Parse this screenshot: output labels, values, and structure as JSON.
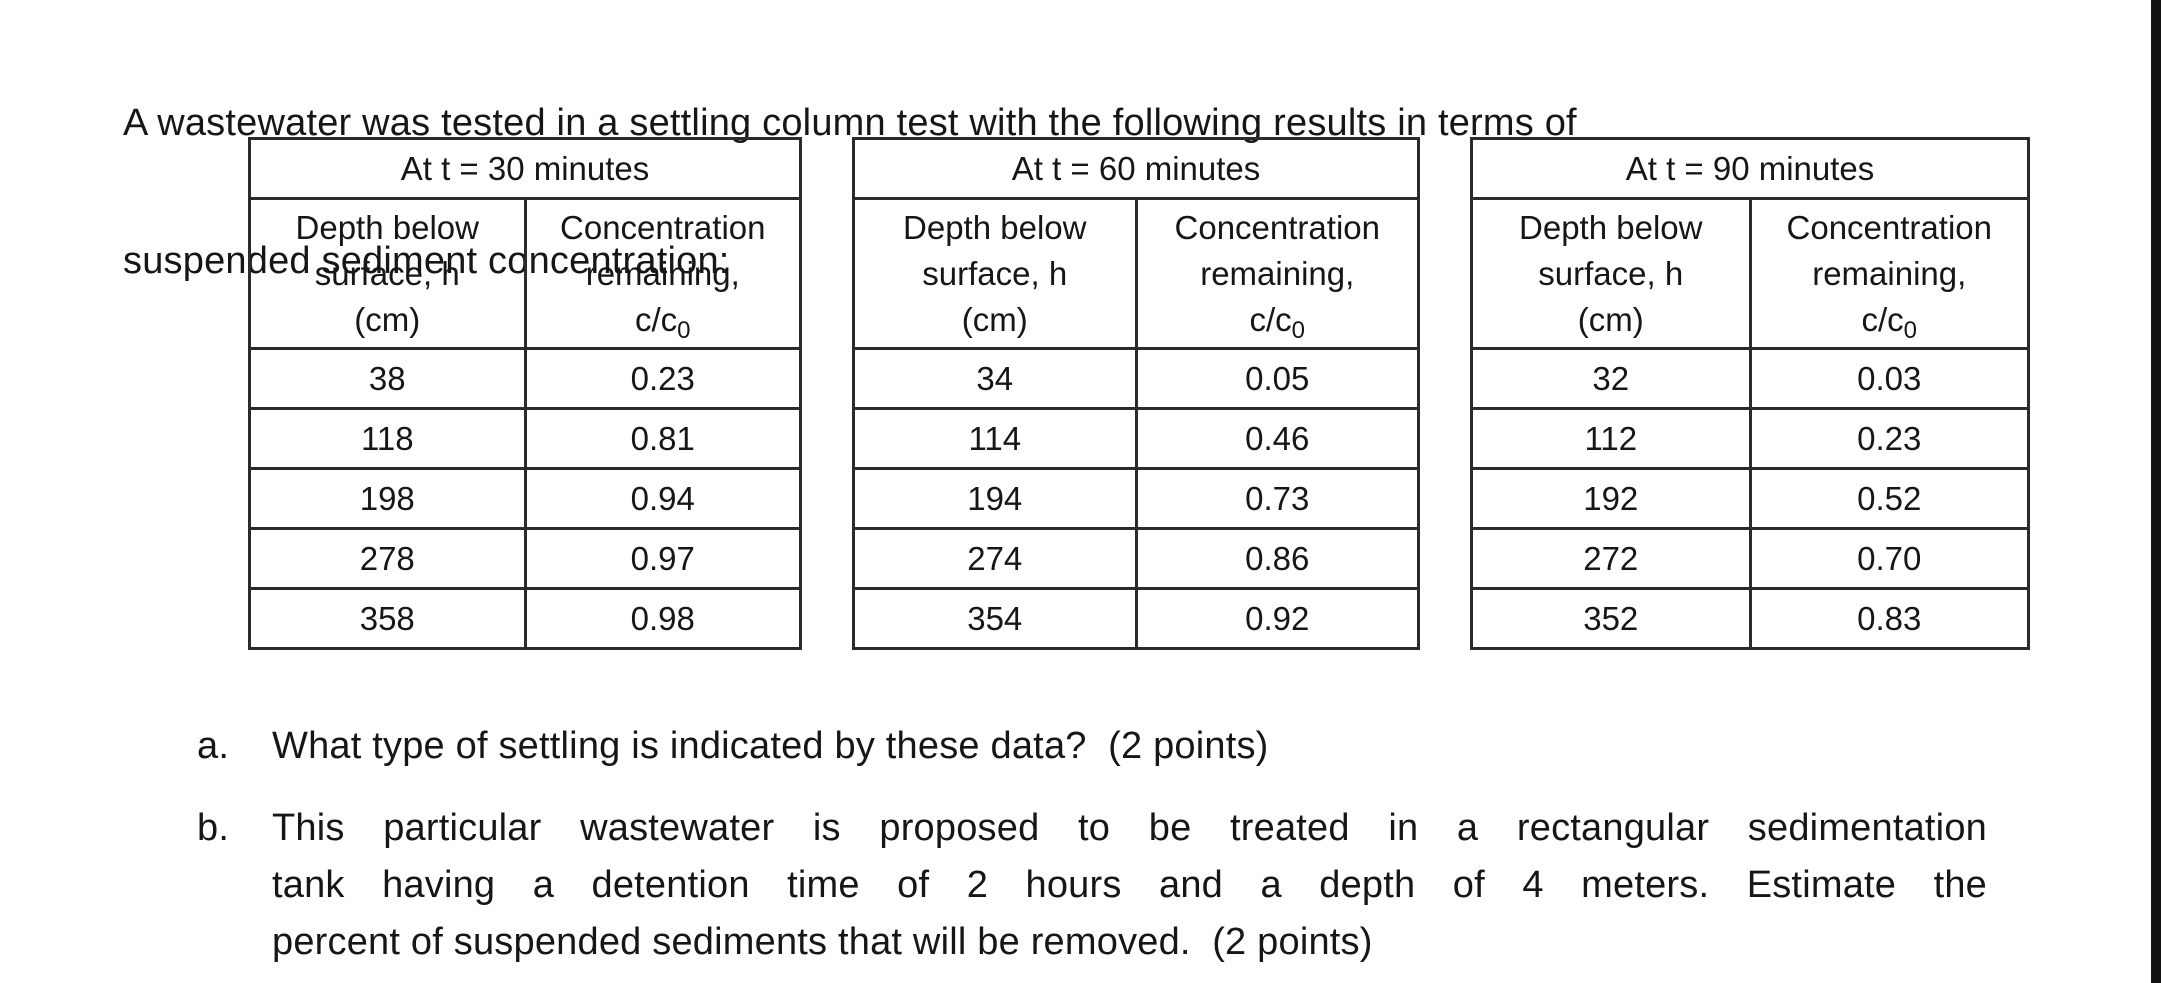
{
  "intro": {
    "line1": "A wastewater was tested in a settling column test with the following results in terms of",
    "line2": "suspended sediment concentration:"
  },
  "table_headers": {
    "col1_line1": "Depth below",
    "col1_line2": "surface, h",
    "col1_line3": "(cm)",
    "col2_line1": "Concentration",
    "col2_line2": "remaining,",
    "col2_line3_base": "c/c",
    "col2_line3_sub": "0"
  },
  "tables": [
    {
      "title": "At t = 30 minutes",
      "rows": [
        [
          "38",
          "0.23"
        ],
        [
          "118",
          "0.81"
        ],
        [
          "198",
          "0.94"
        ],
        [
          "278",
          "0.97"
        ],
        [
          "358",
          "0.98"
        ]
      ]
    },
    {
      "title": "At t = 60 minutes",
      "rows": [
        [
          "34",
          "0.05"
        ],
        [
          "114",
          "0.46"
        ],
        [
          "194",
          "0.73"
        ],
        [
          "274",
          "0.86"
        ],
        [
          "354",
          "0.92"
        ]
      ]
    },
    {
      "title": "At t = 90 minutes",
      "rows": [
        [
          "32",
          "0.03"
        ],
        [
          "112",
          "0.23"
        ],
        [
          "192",
          "0.52"
        ],
        [
          "272",
          "0.70"
        ],
        [
          "352",
          "0.83"
        ]
      ]
    }
  ],
  "questions": {
    "a_label": "a.",
    "a_text": "What type of settling is indicated by these data?  (2 points)",
    "b_label": "b.",
    "b_line1": "This particular wastewater is proposed to be treated in a rectangular sedimentation",
    "b_line2": "tank having a detention time of 2 hours and a depth of 4 meters.  Estimate the",
    "b_line3": "percent of suspended sediments that will be removed.  (2 points)"
  },
  "colors": {
    "text": "#161616",
    "table_border": "#2b2b2b",
    "edge_strip": "#121215",
    "background": "#ffffff"
  }
}
